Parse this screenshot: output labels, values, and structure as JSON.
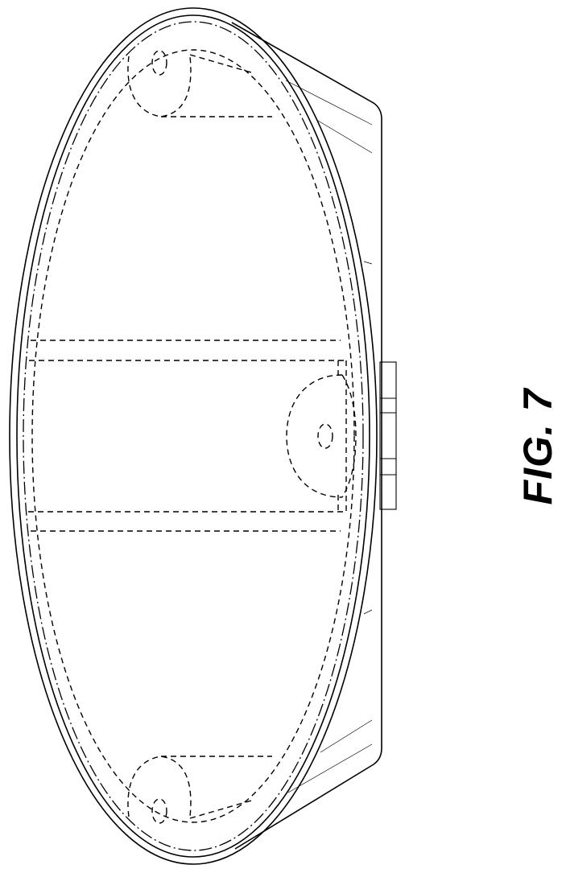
{
  "figure": {
    "label": "FIG. 7"
  }
}
